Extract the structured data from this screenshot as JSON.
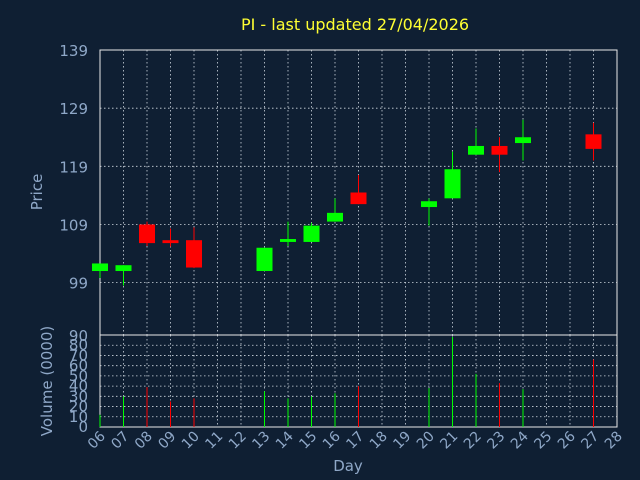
{
  "chart_data": {
    "type": "candlestick",
    "title": "PI - last updated 27/04/2026",
    "xlabel": "Day",
    "ylabel": "Price",
    "volume_label": "Volume (0000)",
    "x_categories": [
      "06",
      "07",
      "08",
      "09",
      "10",
      "11",
      "12",
      "13",
      "14",
      "15",
      "16",
      "17",
      "18",
      "19",
      "20",
      "21",
      "22",
      "23",
      "24",
      "25",
      "26",
      "27",
      "28"
    ],
    "price_ylim": [
      90,
      139
    ],
    "price_ticks": [
      99,
      109,
      119,
      129,
      139
    ],
    "price_bottom_tick": "90",
    "volume_ylim": [
      0,
      90
    ],
    "volume_ticks": [
      0,
      10,
      20,
      30,
      40,
      50,
      60,
      70,
      80
    ],
    "grid": true,
    "colors": {
      "up": "#00ff00",
      "down": "#ff0000",
      "title": "#ffff33",
      "axis_text": "#8fa8c8",
      "background": "#0f1f33"
    },
    "candles": [
      {
        "day": "06",
        "open": 101.0,
        "high": 102.3,
        "low": 99.8,
        "close": 102.3,
        "volume": 12
      },
      {
        "day": "07",
        "open": 101.0,
        "high": 102.0,
        "low": 98.5,
        "close": 102.0,
        "volume": 30
      },
      {
        "day": "08",
        "open": 109.0,
        "high": 109.5,
        "low": 105.3,
        "close": 105.8,
        "volume": 39
      },
      {
        "day": "09",
        "open": 106.3,
        "high": 108.3,
        "low": 105.2,
        "close": 105.8,
        "volume": 25
      },
      {
        "day": "10",
        "open": 106.3,
        "high": 108.5,
        "low": 101.5,
        "close": 101.6,
        "volume": 28
      },
      {
        "day": "13",
        "open": 101.0,
        "high": 105.0,
        "low": 101.0,
        "close": 105.0,
        "volume": 35
      },
      {
        "day": "14",
        "open": 106.0,
        "high": 109.5,
        "low": 105.3,
        "close": 106.5,
        "volume": 28
      },
      {
        "day": "15",
        "open": 106.0,
        "high": 109.3,
        "low": 106.0,
        "close": 108.8,
        "volume": 30
      },
      {
        "day": "16",
        "open": 109.5,
        "high": 113.5,
        "low": 109.5,
        "close": 111.0,
        "volume": 33
      },
      {
        "day": "17",
        "open": 114.5,
        "high": 117.5,
        "low": 112.5,
        "close": 112.5,
        "volume": 40
      },
      {
        "day": "20",
        "open": 112.0,
        "high": 113.5,
        "low": 108.8,
        "close": 113.0,
        "volume": 38
      },
      {
        "day": "21",
        "open": 113.5,
        "high": 121.5,
        "low": 113.5,
        "close": 118.5,
        "volume": 88
      },
      {
        "day": "22",
        "open": 121.0,
        "high": 125.5,
        "low": 121.0,
        "close": 122.5,
        "volume": 52
      },
      {
        "day": "23",
        "open": 122.5,
        "high": 124.0,
        "low": 118.0,
        "close": 121.0,
        "volume": 43
      },
      {
        "day": "24",
        "open": 123.0,
        "high": 127.0,
        "low": 120.0,
        "close": 124.0,
        "volume": 37
      },
      {
        "day": "27",
        "open": 124.5,
        "high": 126.5,
        "low": 120.0,
        "close": 122.0,
        "volume": 66
      }
    ]
  }
}
